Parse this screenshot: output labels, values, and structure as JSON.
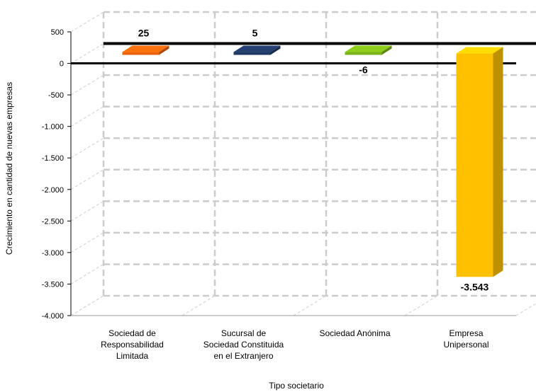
{
  "chart_data": {
    "type": "bar",
    "categories": [
      [
        "Sociedad de",
        "Responsabilidad",
        "Limitada"
      ],
      [
        "Sucursal de",
        "Sociedad Constituida",
        "en el Extranjero"
      ],
      [
        "Sociedad Anónima"
      ],
      [
        "Empresa",
        "Unipersonal"
      ]
    ],
    "values": [
      25,
      5,
      -6,
      -3543
    ],
    "data_labels": [
      "25",
      "5",
      "-6",
      "-3.543"
    ],
    "colors": [
      "#e8630a",
      "#1f3864",
      "#7ab317",
      "#ffc000"
    ],
    "xlabel": "Tipo societario",
    "ylabel": "Crecimiento en cantidad de nuevas empresas",
    "ylim": [
      -4000,
      500
    ],
    "yticks": [
      500,
      0,
      -500,
      -1000,
      -1500,
      -2000,
      -2500,
      -3000,
      -3500,
      -4000
    ],
    "ytick_labels": [
      "500",
      "0",
      "-500",
      "-1.000",
      "-1.500",
      "-2.000",
      "-2.500",
      "-3.000",
      "-3.500",
      "-4.000"
    ],
    "grid": true,
    "legend": false,
    "style": "3d-bar"
  }
}
